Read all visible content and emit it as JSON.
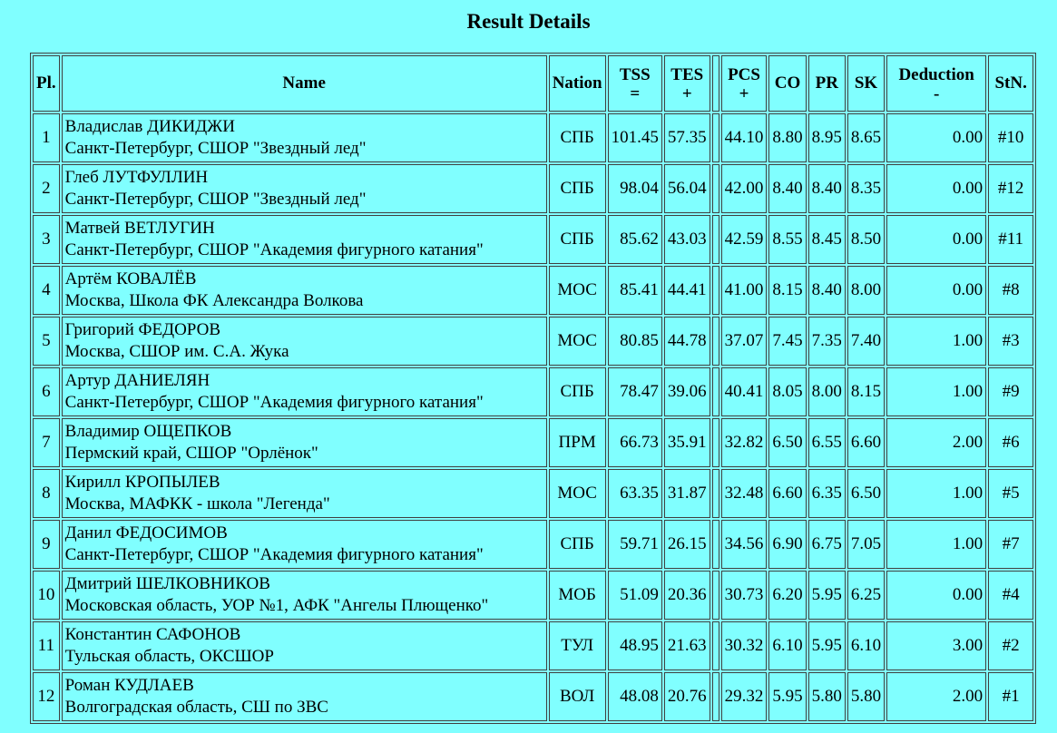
{
  "page": {
    "title": "Result Details",
    "background_color": "#80FFFF",
    "border_color": "#404040"
  },
  "table": {
    "headers": {
      "pl": "Pl.",
      "name": "Name",
      "nation": "Nation",
      "tss": "TSS",
      "tss_sub": "=",
      "tes": "TES",
      "tes_sub": "+",
      "pcs": "PCS",
      "pcs_sub": "+",
      "co": "CO",
      "pr": "PR",
      "sk": "SK",
      "deduction": "Deduction",
      "deduction_sub": "-",
      "stn": "StN."
    },
    "rows": [
      {
        "pl": "1",
        "name": "Владислав ДИКИДЖИ",
        "club": "Санкт-Петербург, СШОР \"Звездный лед\"",
        "nation": "СПБ",
        "tss": "101.45",
        "tes": "57.35",
        "pcs": "44.10",
        "co": "8.80",
        "pr": "8.95",
        "sk": "8.65",
        "deduction": "0.00",
        "stn": "#10"
      },
      {
        "pl": "2",
        "name": "Глеб ЛУТФУЛЛИН",
        "club": "Санкт-Петербург, СШОР \"Звездный лед\"",
        "nation": "СПБ",
        "tss": "98.04",
        "tes": "56.04",
        "pcs": "42.00",
        "co": "8.40",
        "pr": "8.40",
        "sk": "8.35",
        "deduction": "0.00",
        "stn": "#12"
      },
      {
        "pl": "3",
        "name": "Матвей ВЕТЛУГИН",
        "club": "Санкт-Петербург, СШОР \"Академия фигурного катания\"",
        "nation": "СПБ",
        "tss": "85.62",
        "tes": "43.03",
        "pcs": "42.59",
        "co": "8.55",
        "pr": "8.45",
        "sk": "8.50",
        "deduction": "0.00",
        "stn": "#11"
      },
      {
        "pl": "4",
        "name": "Артём КОВАЛЁВ",
        "club": "Москва, Школа ФК Александра Волкова",
        "nation": "МОС",
        "tss": "85.41",
        "tes": "44.41",
        "pcs": "41.00",
        "co": "8.15",
        "pr": "8.40",
        "sk": "8.00",
        "deduction": "0.00",
        "stn": "#8"
      },
      {
        "pl": "5",
        "name": "Григорий ФЕДОРОВ",
        "club": "Москва, СШОР им. С.А. Жука",
        "nation": "МОС",
        "tss": "80.85",
        "tes": "44.78",
        "pcs": "37.07",
        "co": "7.45",
        "pr": "7.35",
        "sk": "7.40",
        "deduction": "1.00",
        "stn": "#3"
      },
      {
        "pl": "6",
        "name": "Артур ДАНИЕЛЯН",
        "club": "Санкт-Петербург, СШОР \"Академия фигурного катания\"",
        "nation": "СПБ",
        "tss": "78.47",
        "tes": "39.06",
        "pcs": "40.41",
        "co": "8.05",
        "pr": "8.00",
        "sk": "8.15",
        "deduction": "1.00",
        "stn": "#9"
      },
      {
        "pl": "7",
        "name": "Владимир ОЩЕПКОВ",
        "club": "Пермский край, СШОР \"Орлёнок\"",
        "nation": "ПРМ",
        "tss": "66.73",
        "tes": "35.91",
        "pcs": "32.82",
        "co": "6.50",
        "pr": "6.55",
        "sk": "6.60",
        "deduction": "2.00",
        "stn": "#6"
      },
      {
        "pl": "8",
        "name": "Кирилл КРОПЫЛЕВ",
        "club": "Москва, МАФКК - школа \"Легенда\"",
        "nation": "МОС",
        "tss": "63.35",
        "tes": "31.87",
        "pcs": "32.48",
        "co": "6.60",
        "pr": "6.35",
        "sk": "6.50",
        "deduction": "1.00",
        "stn": "#5"
      },
      {
        "pl": "9",
        "name": "Данил ФЕДОСИМОВ",
        "club": "Санкт-Петербург, СШОР \"Академия фигурного катания\"",
        "nation": "СПБ",
        "tss": "59.71",
        "tes": "26.15",
        "pcs": "34.56",
        "co": "6.90",
        "pr": "6.75",
        "sk": "7.05",
        "deduction": "1.00",
        "stn": "#7"
      },
      {
        "pl": "10",
        "name": "Дмитрий ШЕЛКОВНИКОВ",
        "club": "Московская область, УОР №1, АФК \"Ангелы Плющенко\"",
        "nation": "МОБ",
        "tss": "51.09",
        "tes": "20.36",
        "pcs": "30.73",
        "co": "6.20",
        "pr": "5.95",
        "sk": "6.25",
        "deduction": "0.00",
        "stn": "#4"
      },
      {
        "pl": "11",
        "name": "Константин САФОНОВ",
        "club": "Тульская область, ОКСШОР",
        "nation": "ТУЛ",
        "tss": "48.95",
        "tes": "21.63",
        "pcs": "30.32",
        "co": "6.10",
        "pr": "5.95",
        "sk": "6.10",
        "deduction": "3.00",
        "stn": "#2"
      },
      {
        "pl": "12",
        "name": "Роман КУДЛАЕВ",
        "club": "Волгоградская область, СШ по ЗВС",
        "nation": "ВОЛ",
        "tss": "48.08",
        "tes": "20.76",
        "pcs": "29.32",
        "co": "5.95",
        "pr": "5.80",
        "sk": "5.80",
        "deduction": "2.00",
        "stn": "#1"
      }
    ]
  }
}
